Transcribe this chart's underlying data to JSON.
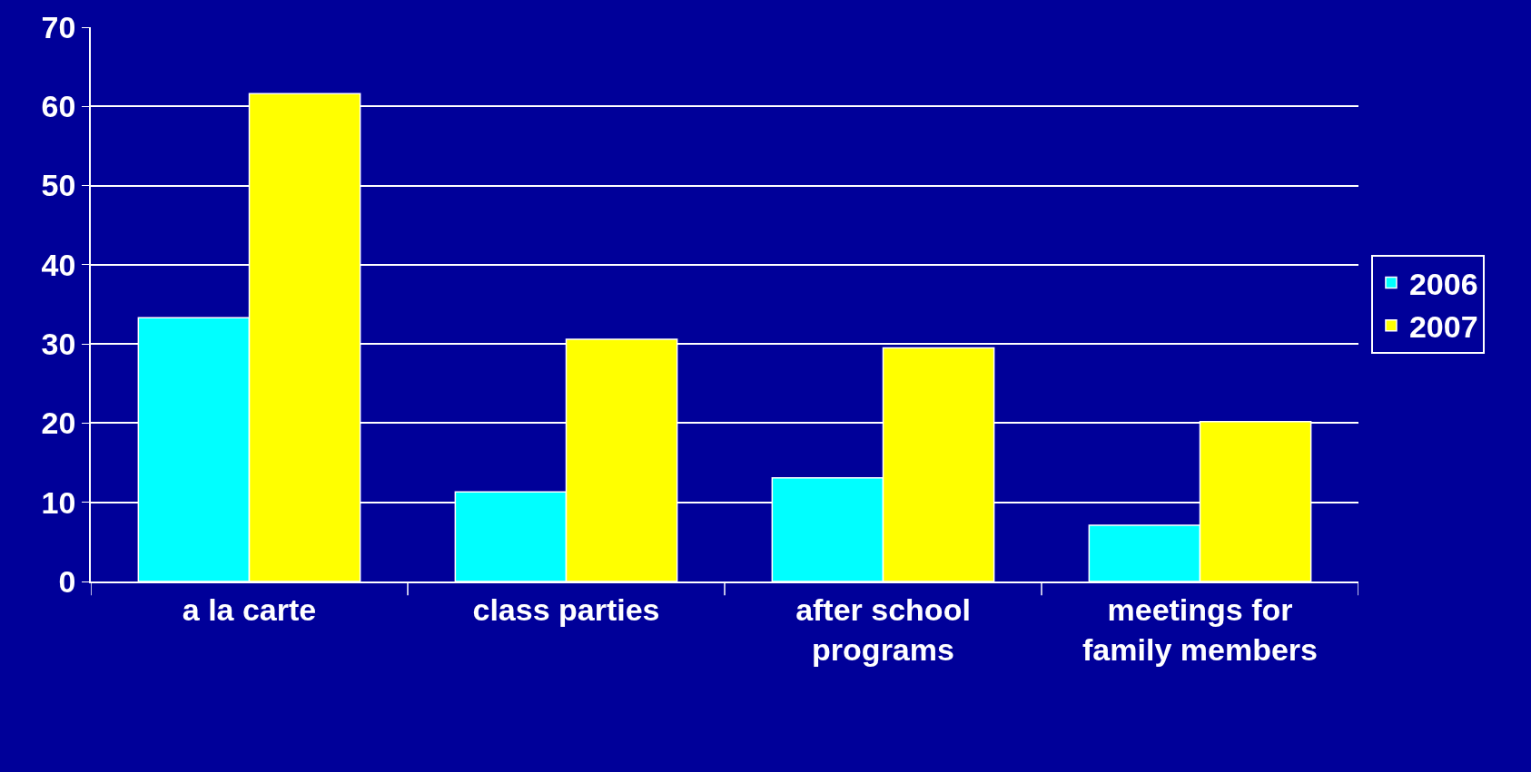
{
  "chart_data": {
    "type": "bar",
    "categories": [
      "a la carte",
      "class parties",
      "after school programs",
      "meetings for family members"
    ],
    "series": [
      {
        "name": "2006",
        "color": "#00ffff",
        "values": [
          33.3,
          11.3,
          13.1,
          7.1
        ]
      },
      {
        "name": "2007",
        "color": "#ffff00",
        "values": [
          61.6,
          30.6,
          29.5,
          20.2
        ]
      }
    ],
    "ylim": [
      0,
      70
    ],
    "yticks": [
      0,
      10,
      20,
      30,
      40,
      50,
      60,
      70
    ],
    "grid": "y",
    "legend": "right"
  }
}
